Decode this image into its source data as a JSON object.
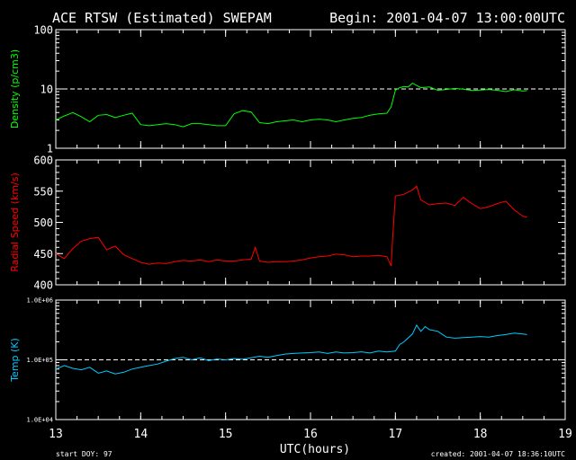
{
  "header": {
    "title": "ACE RTSW (Estimated) SWEPAM",
    "begin": "Begin: 2001-04-07 13:00:00UTC"
  },
  "footer": {
    "start_doy": "start DOY: 97",
    "created": "created: 2001-04-07 18:36:10UTC"
  },
  "colors": {
    "background": "#000000",
    "axes": "#ffffff",
    "density": "#00ff00",
    "speed": "#ff0000",
    "temp": "#00ccff"
  },
  "chart_data": [
    {
      "type": "line",
      "ylabel": "Density (p/cm3)",
      "yscale": "log",
      "ylim": [
        1,
        100
      ],
      "yticks": [
        1,
        10,
        100
      ],
      "ytick_labels": [
        "1",
        "10",
        "100"
      ],
      "reference_line": 10,
      "xlim": [
        13,
        19
      ],
      "series": [
        {
          "x": [
            13.0,
            13.1,
            13.2,
            13.3,
            13.4,
            13.5,
            13.6,
            13.7,
            13.8,
            13.9,
            14.0,
            14.1,
            14.2,
            14.3,
            14.4,
            14.5,
            14.6,
            14.7,
            14.8,
            14.9,
            15.0,
            15.1,
            15.2,
            15.3,
            15.4,
            15.5,
            15.6,
            15.7,
            15.8,
            15.9,
            16.0,
            16.1,
            16.2,
            16.3,
            16.4,
            16.5,
            16.6,
            16.7,
            16.8,
            16.9,
            16.95,
            17.0,
            17.05,
            17.1,
            17.15,
            17.2,
            17.3,
            17.4,
            17.5,
            17.6,
            17.7,
            17.8,
            17.9,
            18.0,
            18.1,
            18.2,
            18.3,
            18.4,
            18.5,
            18.55
          ],
          "values": [
            3.0,
            3.5,
            4.0,
            3.4,
            2.8,
            3.6,
            3.7,
            3.3,
            3.6,
            3.9,
            2.5,
            2.4,
            2.5,
            2.6,
            2.5,
            2.3,
            2.6,
            2.6,
            2.5,
            2.4,
            2.4,
            3.8,
            4.3,
            4.1,
            2.7,
            2.6,
            2.8,
            2.9,
            3.0,
            2.8,
            3.0,
            3.1,
            3.0,
            2.8,
            3.0,
            3.2,
            3.3,
            3.6,
            3.8,
            3.9,
            5.0,
            9.5,
            10.5,
            11.0,
            10.8,
            12.5,
            10.5,
            10.8,
            9.5,
            9.8,
            10.2,
            9.9,
            9.4,
            9.6,
            9.8,
            9.5,
            9.0,
            9.7,
            9.2,
            9.4
          ]
        }
      ]
    },
    {
      "type": "line",
      "ylabel": "Radial Speed (km/s)",
      "ylim": [
        400,
        600
      ],
      "yticks": [
        400,
        450,
        500,
        550,
        600
      ],
      "ytick_labels": [
        "400",
        "450",
        "500",
        "550",
        "600"
      ],
      "xlim": [
        13,
        19
      ],
      "series": [
        {
          "x": [
            13.0,
            13.1,
            13.2,
            13.3,
            13.4,
            13.5,
            13.6,
            13.7,
            13.8,
            13.9,
            14.0,
            14.1,
            14.2,
            14.3,
            14.4,
            14.5,
            14.6,
            14.7,
            14.8,
            14.9,
            15.0,
            15.1,
            15.2,
            15.3,
            15.35,
            15.4,
            15.5,
            15.6,
            15.7,
            15.8,
            15.9,
            16.0,
            16.1,
            16.2,
            16.3,
            16.4,
            16.5,
            16.6,
            16.7,
            16.8,
            16.9,
            16.95,
            16.97,
            17.0,
            17.1,
            17.2,
            17.25,
            17.3,
            17.4,
            17.5,
            17.6,
            17.7,
            17.8,
            17.9,
            18.0,
            18.1,
            18.2,
            18.3,
            18.4,
            18.5,
            18.55
          ],
          "values": [
            450,
            442,
            458,
            470,
            474,
            476,
            456,
            462,
            448,
            442,
            436,
            433,
            435,
            434,
            437,
            439,
            438,
            440,
            437,
            440,
            438,
            438,
            440,
            441,
            460,
            438,
            436,
            437,
            437,
            438,
            440,
            443,
            445,
            446,
            449,
            448,
            445,
            446,
            446,
            447,
            445,
            430,
            480,
            542,
            545,
            552,
            558,
            536,
            528,
            530,
            531,
            527,
            540,
            530,
            522,
            525,
            530,
            534,
            520,
            510,
            508
          ]
        }
      ]
    },
    {
      "type": "line",
      "ylabel": "Temp (K)",
      "yscale": "log",
      "ylim": [
        10000,
        1000000
      ],
      "yticks": [
        10000,
        100000,
        1000000
      ],
      "ytick_labels": [
        "1.0E+04",
        "1.0E+05",
        "1.0E+06"
      ],
      "reference_line": 100000,
      "xlim": [
        13,
        19
      ],
      "series": [
        {
          "x": [
            13.0,
            13.1,
            13.2,
            13.3,
            13.4,
            13.5,
            13.6,
            13.7,
            13.8,
            13.9,
            14.0,
            14.1,
            14.2,
            14.3,
            14.4,
            14.5,
            14.6,
            14.7,
            14.8,
            14.9,
            15.0,
            15.1,
            15.2,
            15.3,
            15.4,
            15.5,
            15.6,
            15.7,
            15.8,
            15.9,
            16.0,
            16.1,
            16.2,
            16.3,
            16.4,
            16.5,
            16.6,
            16.7,
            16.8,
            16.9,
            17.0,
            17.05,
            17.1,
            17.2,
            17.25,
            17.3,
            17.35,
            17.4,
            17.5,
            17.6,
            17.7,
            17.8,
            17.9,
            18.0,
            18.1,
            18.2,
            18.3,
            18.4,
            18.5,
            18.55
          ],
          "values": [
            70000,
            80000,
            72000,
            68000,
            75000,
            60000,
            65000,
            58000,
            62000,
            70000,
            75000,
            80000,
            85000,
            95000,
            105000,
            110000,
            100000,
            108000,
            97000,
            103000,
            100000,
            105000,
            102000,
            108000,
            115000,
            110000,
            118000,
            125000,
            128000,
            130000,
            132000,
            135000,
            128000,
            135000,
            130000,
            132000,
            136000,
            130000,
            140000,
            135000,
            140000,
            180000,
            200000,
            270000,
            380000,
            300000,
            360000,
            320000,
            300000,
            240000,
            230000,
            235000,
            240000,
            245000,
            240000,
            255000,
            265000,
            280000,
            270000,
            265000
          ]
        }
      ]
    }
  ],
  "xaxis": {
    "label": "UTC(hours)",
    "ticks": [
      13,
      14,
      15,
      16,
      17,
      18,
      19
    ],
    "tick_labels": [
      "13",
      "14",
      "15",
      "16",
      "17",
      "18",
      "19"
    ]
  }
}
